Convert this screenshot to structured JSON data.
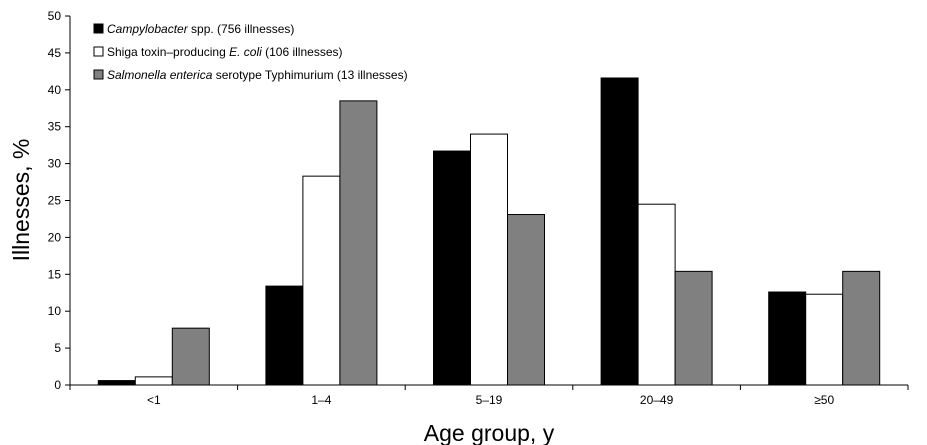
{
  "chart_data": {
    "type": "bar",
    "categories": [
      "<1",
      "1–4",
      "5–19",
      "20–49",
      "≥50"
    ],
    "series": [
      {
        "name_italic": "Campylobacter",
        "name_suffix": " spp. (756 illnesses)",
        "color": "#000000",
        "values": [
          0.6,
          13.4,
          31.7,
          41.6,
          12.6
        ]
      },
      {
        "name_prefix": "Shiga toxin–producing ",
        "name_italic": "E. coli",
        "name_suffix": "  (106 illnesses)",
        "color": "#ffffff",
        "values": [
          1.1,
          28.3,
          34.0,
          24.5,
          12.3
        ]
      },
      {
        "name_italic": "Salmonella enterica",
        "name_suffix": " serotype Typhimurium (13 illnesses)",
        "color": "#808080",
        "values": [
          7.7,
          38.5,
          23.1,
          15.4,
          15.4
        ]
      }
    ],
    "xlabel": "Age group, y",
    "ylabel": "Illnesses, %",
    "ylim": [
      0,
      50
    ],
    "yticks": [
      0,
      5,
      10,
      15,
      20,
      25,
      30,
      35,
      40,
      45,
      50
    ],
    "grid": false,
    "legend_position": "top-left"
  }
}
